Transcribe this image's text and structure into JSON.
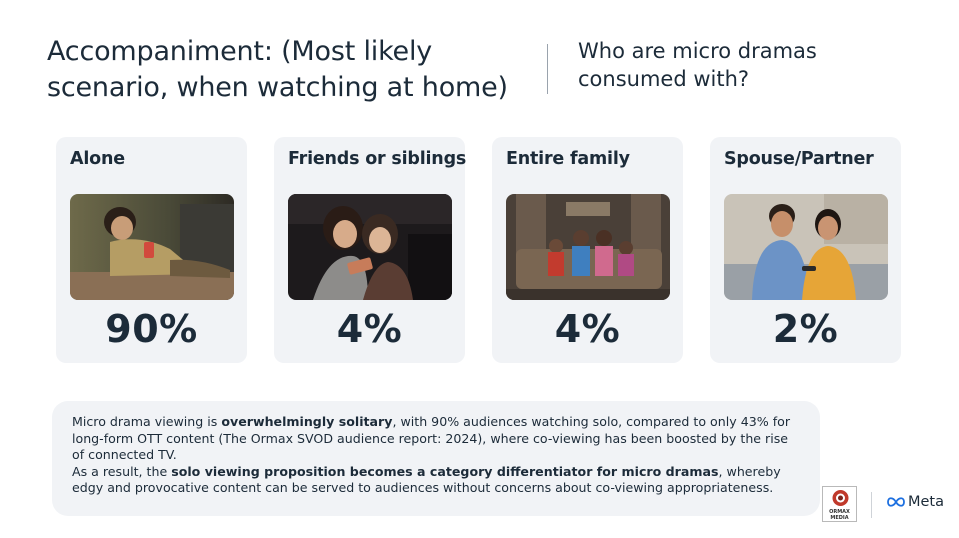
{
  "header": {
    "title": "Accompaniment: (Most likely scenario, when watching at home)",
    "question": "Who are micro dramas consumed with?"
  },
  "cards": [
    {
      "label": "Alone",
      "value": "90%",
      "percent": 90,
      "photo_icon": "person-alone-watching-phone-photo"
    },
    {
      "label": "Friends or siblings",
      "value": "4%",
      "percent": 4,
      "photo_icon": "friends-watching-phone-photo"
    },
    {
      "label": "Entire family",
      "value": "4%",
      "percent": 4,
      "photo_icon": "family-watching-tv-photo"
    },
    {
      "label": "Spouse/Partner",
      "value": "2%",
      "percent": 2,
      "photo_icon": "couple-watching-tv-photo"
    }
  ],
  "note": {
    "p1_before": "Micro drama viewing is ",
    "p1_bold": "overwhelmingly solitary",
    "p1_after": ", with 90% audiences watching solo, compared to only 43% for long-form OTT content (The Ormax SVOD audience report: 2024), where co-viewing has been boosted by the rise of connected TV.",
    "p2_before": "As a result, the ",
    "p2_bold": "solo viewing proposition becomes a category differentiator for micro dramas",
    "p2_after": ", whereby edgy and provocative content can be served to audiences without concerns about co-viewing appropriateness."
  },
  "logos": {
    "ormax_text": "ORMAX MEDIA",
    "meta_text": "Meta"
  },
  "colors": {
    "text": "#1c2b39",
    "card_bg": "#f1f3f6",
    "ormax_red": "#c0392b"
  }
}
